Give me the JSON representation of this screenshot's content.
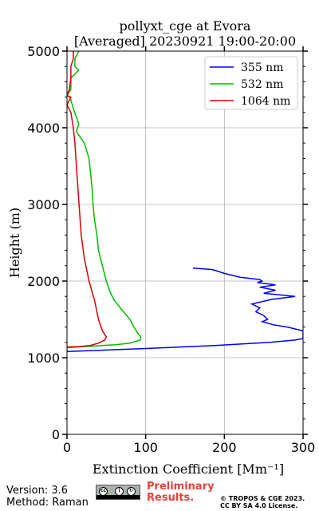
{
  "chart_data": {
    "type": "line",
    "title_line1": "pollyxt_cge at Evora",
    "title_line2": "[Averaged] 20230921 19:00-20:00",
    "xlabel": "Extinction Coefficient [Mm⁻¹]",
    "ylabel": "Height (m)",
    "xlim": [
      0,
      300
    ],
    "ylim": [
      0,
      5000
    ],
    "xticks": [
      0,
      100,
      200,
      300
    ],
    "yticks": [
      0,
      1000,
      2000,
      3000,
      4000,
      5000
    ],
    "grid": true,
    "legend_position": "top-right",
    "series": [
      {
        "name": "355 nm",
        "color": "#0000ff",
        "points": [
          [
            0,
            1080
          ],
          [
            100,
            1120
          ],
          [
            190,
            1160
          ],
          [
            258,
            1200
          ],
          [
            290,
            1230
          ],
          [
            300,
            1250
          ],
          [
            300,
            1350
          ],
          [
            280,
            1400
          ],
          [
            262,
            1430
          ],
          [
            248,
            1470
          ],
          [
            255,
            1500
          ],
          [
            250,
            1550
          ],
          [
            240,
            1600
          ],
          [
            245,
            1650
          ],
          [
            235,
            1700
          ],
          [
            260,
            1760
          ],
          [
            290,
            1800
          ],
          [
            270,
            1820
          ],
          [
            250,
            1840
          ],
          [
            265,
            1880
          ],
          [
            245,
            1920
          ],
          [
            265,
            1950
          ],
          [
            242,
            1980
          ],
          [
            248,
            2000
          ],
          [
            245,
            2020
          ],
          [
            220,
            2050
          ],
          [
            200,
            2100
          ],
          [
            185,
            2150
          ],
          [
            160,
            2170
          ]
        ]
      },
      {
        "name": "532 nm",
        "color": "#00bb00",
        "points": [
          [
            0,
            1130
          ],
          [
            30,
            1150
          ],
          [
            62,
            1170
          ],
          [
            80,
            1190
          ],
          [
            93,
            1230
          ],
          [
            94,
            1270
          ],
          [
            90,
            1320
          ],
          [
            85,
            1400
          ],
          [
            80,
            1500
          ],
          [
            70,
            1620
          ],
          [
            60,
            1750
          ],
          [
            55,
            1850
          ],
          [
            50,
            2000
          ],
          [
            45,
            2200
          ],
          [
            40,
            2400
          ],
          [
            38,
            2600
          ],
          [
            35,
            2800
          ],
          [
            33,
            3000
          ],
          [
            32,
            3200
          ],
          [
            30,
            3400
          ],
          [
            28,
            3600
          ],
          [
            22,
            3800
          ],
          [
            12,
            3950
          ],
          [
            15,
            4050
          ],
          [
            8,
            4250
          ],
          [
            4,
            4400
          ],
          [
            0,
            4420
          ],
          [
            5,
            4500
          ],
          [
            5,
            4650
          ],
          [
            15,
            4750
          ],
          [
            10,
            4800
          ],
          [
            10,
            4900
          ],
          [
            15,
            5000
          ]
        ]
      },
      {
        "name": "1064 nm",
        "color": "#dd0000",
        "points": [
          [
            0,
            1140
          ],
          [
            15,
            1145
          ],
          [
            30,
            1160
          ],
          [
            40,
            1190
          ],
          [
            48,
            1230
          ],
          [
            50,
            1270
          ],
          [
            45,
            1350
          ],
          [
            40,
            1500
          ],
          [
            35,
            1750
          ],
          [
            28,
            2000
          ],
          [
            22,
            2300
          ],
          [
            18,
            2600
          ],
          [
            16,
            2900
          ],
          [
            14,
            3200
          ],
          [
            12,
            3500
          ],
          [
            10,
            3800
          ],
          [
            8,
            4000
          ],
          [
            5,
            4200
          ],
          [
            0,
            4300
          ],
          [
            5,
            4400
          ],
          [
            0,
            4420
          ],
          [
            3,
            4500
          ],
          [
            5,
            4650
          ],
          [
            5,
            4800
          ],
          [
            8,
            4900
          ],
          [
            8,
            5000
          ]
        ]
      }
    ]
  },
  "footer": {
    "version": "Version: 3.6",
    "method": "Method: Raman",
    "preliminary_line1": "Preliminary",
    "preliminary_line2": "Results.",
    "copyright_line1": "© TROPOS & CGE 2023.",
    "copyright_line2": "CC BY SA 4.0 License."
  },
  "license_badge": {
    "icons": [
      "cc-icon",
      "by-icon",
      "sa-icon"
    ]
  }
}
